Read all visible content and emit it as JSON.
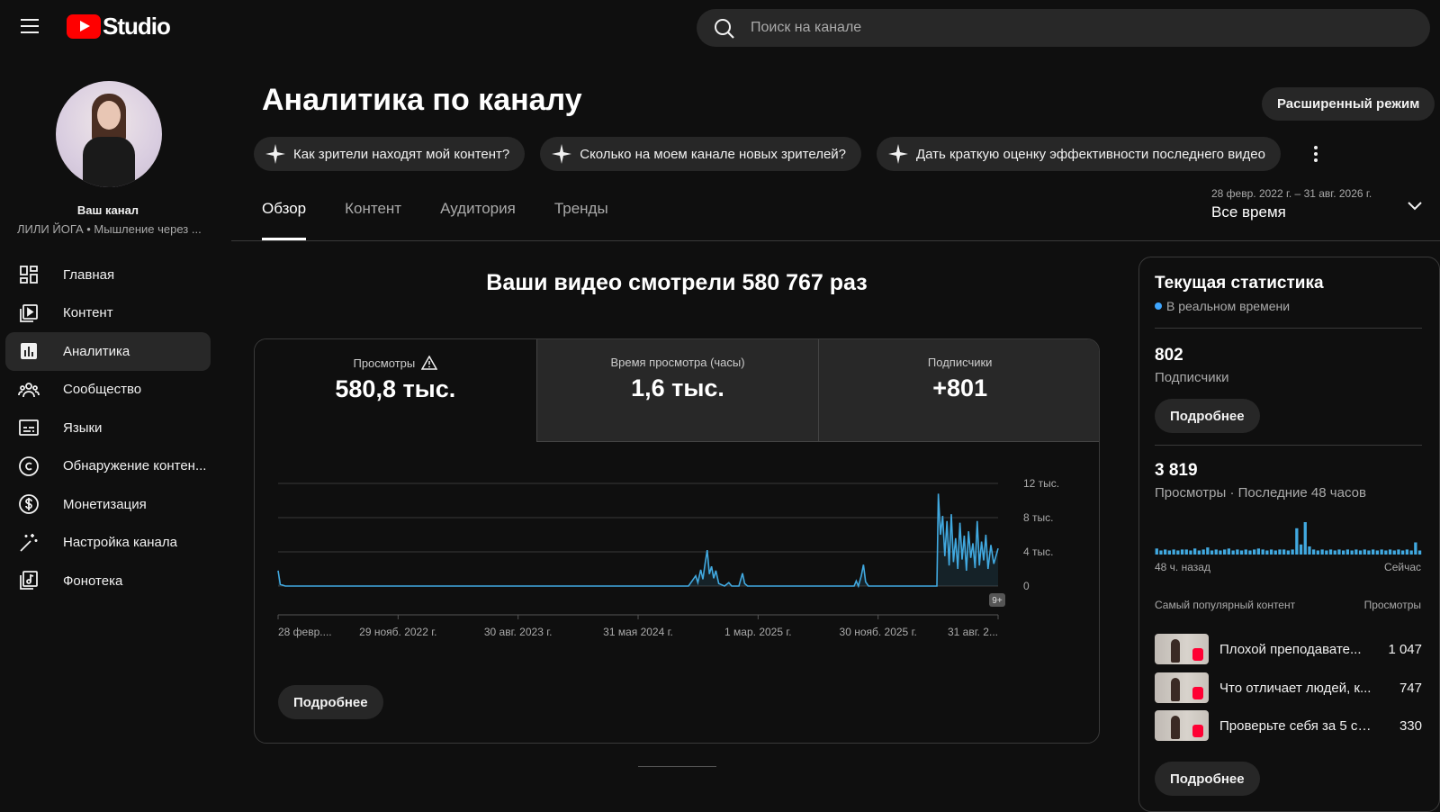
{
  "header": {
    "logo_text": "Studio",
    "search_placeholder": "Поиск на канале"
  },
  "sidebar": {
    "your_channel": "Ваш канал",
    "channel_name": "ЛИЛИ ЙОГА • Мышление через ...",
    "items": [
      {
        "label": "Главная",
        "icon": "dashboard-icon"
      },
      {
        "label": "Контент",
        "icon": "content-icon"
      },
      {
        "label": "Аналитика",
        "icon": "analytics-icon",
        "active": true
      },
      {
        "label": "Сообщество",
        "icon": "community-icon"
      },
      {
        "label": "Языки",
        "icon": "subtitles-icon"
      },
      {
        "label": "Обнаружение контен...",
        "icon": "copyright-icon"
      },
      {
        "label": "Монетизация",
        "icon": "dollar-icon"
      },
      {
        "label": "Настройка канала",
        "icon": "magic-wand-icon"
      },
      {
        "label": "Фонотека",
        "icon": "audio-library-icon"
      }
    ]
  },
  "main": {
    "title": "Аналитика по каналу",
    "advanced_button": "Расширенный режим",
    "chips": [
      "Как зрители находят мой контент?",
      "Сколько на моем канале новых зрителей?",
      "Дать краткую оценку эффективности последнего видео"
    ],
    "tabs": [
      "Обзор",
      "Контент",
      "Аудитория",
      "Тренды"
    ],
    "date_range": "28 февр. 2022 г. – 31 авг. 2026 г.",
    "date_label": "Все время",
    "headline": "Ваши видео смотрели 580 767 раз",
    "metrics": [
      {
        "label": "Просмотры",
        "value": "580,8 тыс.",
        "warning": true
      },
      {
        "label": "Время просмотра (часы)",
        "value": "1,6 тыс."
      },
      {
        "label": "Подписчики",
        "value": "+801"
      }
    ],
    "more_button": "Подробнее"
  },
  "chart_data": {
    "type": "line",
    "title": "",
    "y_ticks": [
      "12 тыс.",
      "8 тыс.",
      "4 тыс.",
      "0"
    ],
    "x_ticks": [
      "28 февр....",
      "29 нояб. 2022 г.",
      "30 авг. 2023 г.",
      "31 мая 2024 г.",
      "1 мар. 2025 г.",
      "30 нояб. 2025 г.",
      "31 авг. 2..."
    ],
    "ylim": [
      0,
      12000
    ],
    "badge": "9+",
    "color": "#41a9e0",
    "series": [
      {
        "values": [
          [
            0,
            1800
          ],
          [
            0.003,
            200
          ],
          [
            0.01,
            0
          ],
          [
            0.57,
            0
          ],
          [
            0.575,
            600
          ],
          [
            0.58,
            1200
          ],
          [
            0.583,
            400
          ],
          [
            0.587,
            1900
          ],
          [
            0.59,
            800
          ],
          [
            0.593,
            2600
          ],
          [
            0.596,
            4200
          ],
          [
            0.599,
            1400
          ],
          [
            0.602,
            2300
          ],
          [
            0.605,
            900
          ],
          [
            0.608,
            1800
          ],
          [
            0.612,
            300
          ],
          [
            0.62,
            0
          ],
          [
            0.626,
            400
          ],
          [
            0.63,
            0
          ],
          [
            0.64,
            0
          ],
          [
            0.645,
            1500
          ],
          [
            0.648,
            300
          ],
          [
            0.652,
            0
          ],
          [
            0.8,
            0
          ],
          [
            0.803,
            600
          ],
          [
            0.806,
            0
          ],
          [
            0.81,
            1200
          ],
          [
            0.813,
            2500
          ],
          [
            0.816,
            500
          ],
          [
            0.82,
            0
          ],
          [
            0.915,
            0
          ],
          [
            0.917,
            10800
          ],
          [
            0.92,
            6000
          ],
          [
            0.923,
            8200
          ],
          [
            0.926,
            3500
          ],
          [
            0.929,
            7600
          ],
          [
            0.932,
            2400
          ],
          [
            0.935,
            8400
          ],
          [
            0.938,
            2800
          ],
          [
            0.941,
            5600
          ],
          [
            0.944,
            2000
          ],
          [
            0.947,
            7400
          ],
          [
            0.95,
            3100
          ],
          [
            0.953,
            5900
          ],
          [
            0.956,
            1800
          ],
          [
            0.959,
            6400
          ],
          [
            0.962,
            3300
          ],
          [
            0.965,
            5000
          ],
          [
            0.968,
            2100
          ],
          [
            0.971,
            7600
          ],
          [
            0.974,
            2400
          ],
          [
            0.977,
            5200
          ],
          [
            0.98,
            3000
          ],
          [
            0.983,
            6000
          ],
          [
            0.986,
            2000
          ],
          [
            0.99,
            4800
          ],
          [
            0.994,
            2600
          ],
          [
            1.0,
            4400
          ]
        ]
      }
    ]
  },
  "realtime": {
    "title": "Текущая статистика",
    "live_label": "В реальном времени",
    "subscribers_value": "802",
    "subscribers_label": "Подписчики",
    "views_value": "3 819",
    "views_label": "Просмотры · Последние 48 часов",
    "more_button": "Подробнее",
    "spark_left": "48 ч. назад",
    "spark_right": "Сейчас",
    "spark_values": [
      6,
      4,
      5,
      4,
      5,
      4,
      5,
      5,
      4,
      6,
      4,
      5,
      7,
      4,
      5,
      4,
      5,
      6,
      4,
      5,
      4,
      5,
      4,
      5,
      6,
      5,
      4,
      5,
      4,
      5,
      5,
      4,
      5,
      26,
      10,
      32,
      8,
      5,
      4,
      5,
      4,
      5,
      4,
      5,
      4,
      5,
      4,
      5,
      4,
      5,
      4,
      5,
      4,
      5,
      4,
      5,
      4,
      5,
      4,
      5,
      4,
      12,
      4
    ],
    "top_header_left": "Самый популярный контент",
    "top_header_right": "Просмотры",
    "top_content": [
      {
        "title": "Плохой преподавате...",
        "views": "1 047"
      },
      {
        "title": "Что отличает людей, к...",
        "views": "747"
      },
      {
        "title": "Проверьте себя за 5 се...",
        "views": "330"
      }
    ]
  }
}
